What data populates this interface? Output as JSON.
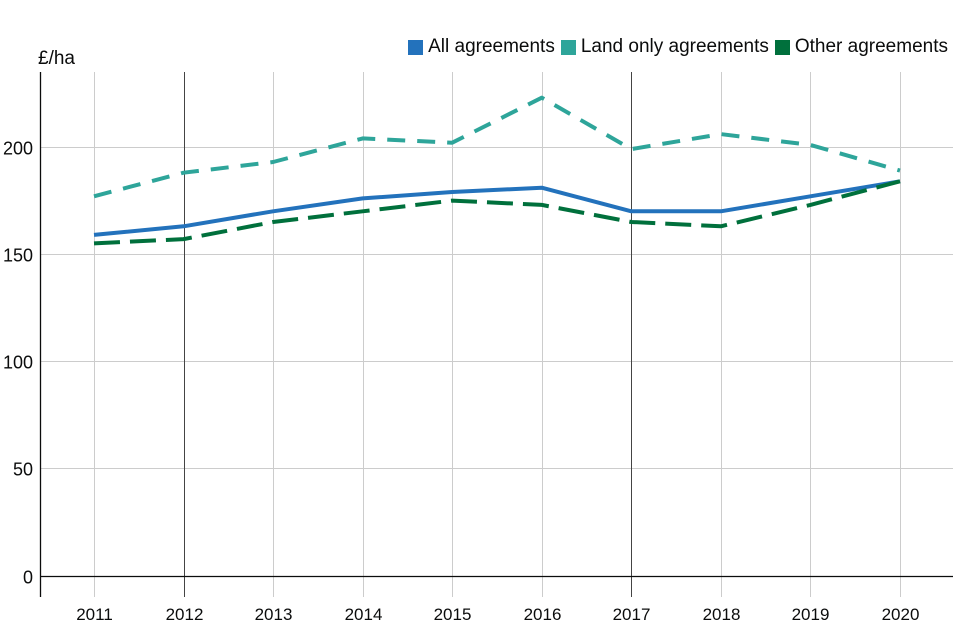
{
  "chart_data": {
    "type": "line",
    "title": "",
    "xlabel": "",
    "ylabel": "£/ha",
    "categories": [
      "2011",
      "2012",
      "2013",
      "2014",
      "2015",
      "2016",
      "2017",
      "2018",
      "2019",
      "2020"
    ],
    "ylim": [
      -10,
      235
    ],
    "yticks": [
      0,
      50,
      100,
      150,
      200
    ],
    "grid": true,
    "highlight_vlines": [
      "2012",
      "2017"
    ],
    "legend_position": "top-right",
    "series": [
      {
        "name": "All agreements",
        "color": "#2372bc",
        "dash": "solid",
        "values": [
          159,
          163,
          170,
          176,
          179,
          181,
          170,
          170,
          177,
          184
        ]
      },
      {
        "name": "Land only agreements",
        "color": "#2ea59a",
        "dash": "dashed",
        "values": [
          177,
          188,
          193,
          204,
          202,
          223,
          199,
          206,
          201,
          189
        ]
      },
      {
        "name": "Other agreements",
        "color": "#00703c",
        "dash": "dashed-long",
        "values": [
          155,
          157,
          165,
          170,
          175,
          173,
          165,
          163,
          173,
          184
        ]
      }
    ]
  }
}
